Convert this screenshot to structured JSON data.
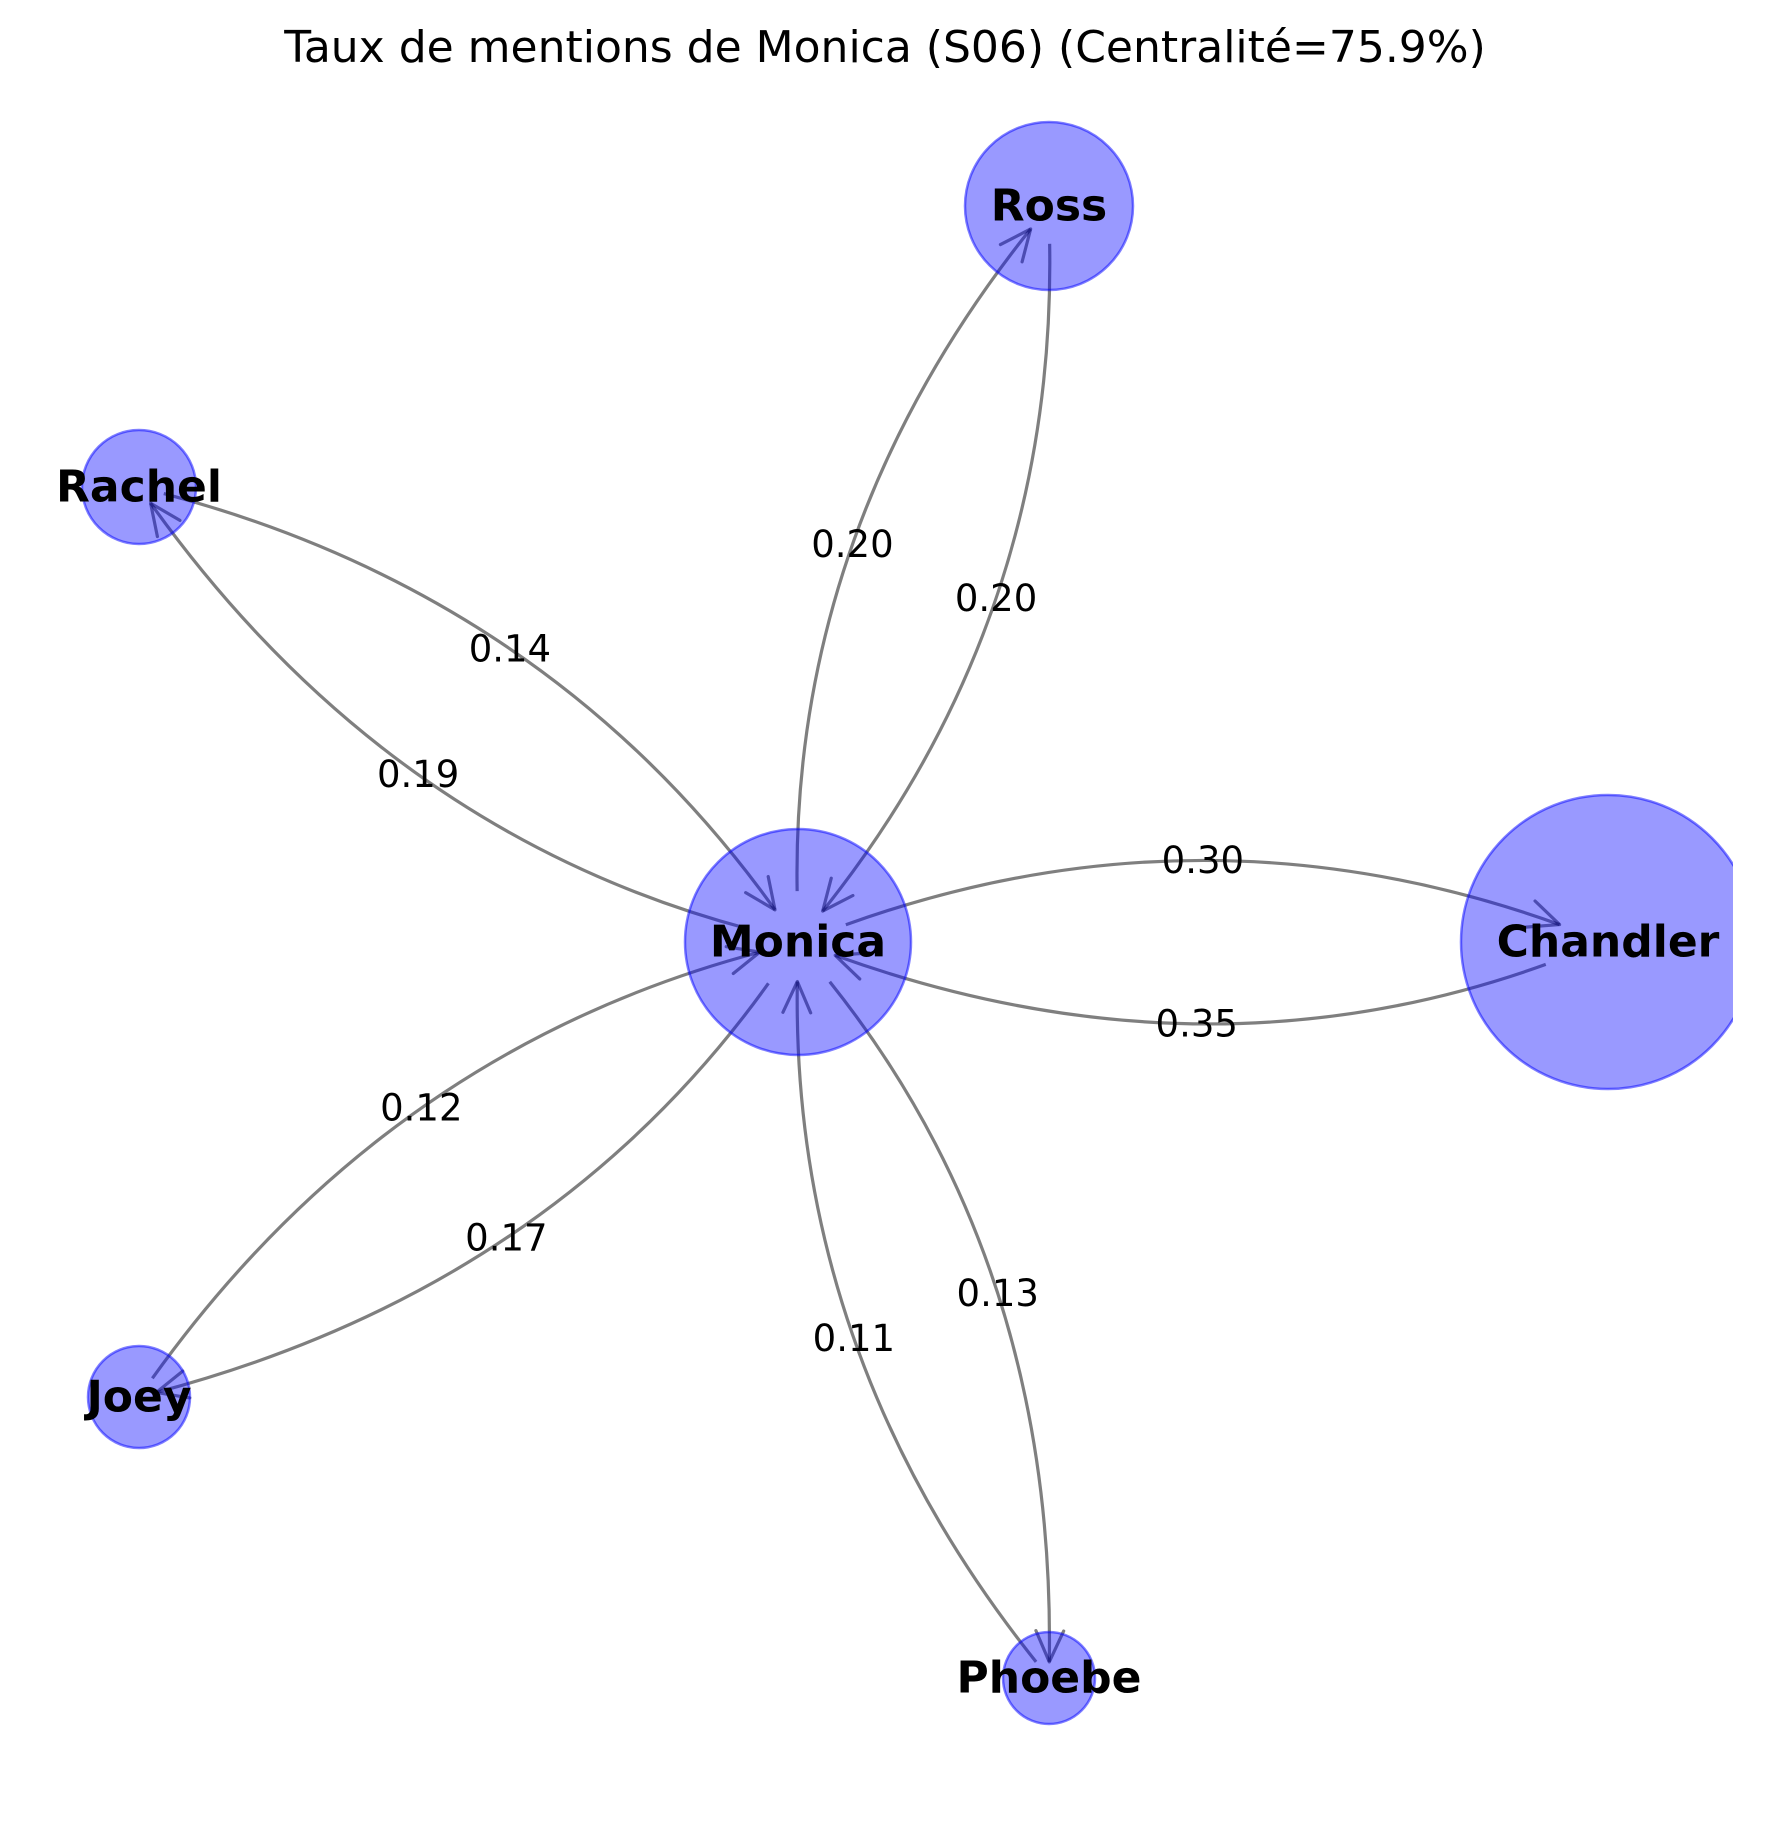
{
  "title": "Taux de mentions de Monica (S06) (Centralité=75.9%)",
  "colors": {
    "node_fill": "#0000ff",
    "edge": "#000000"
  },
  "nodes": [
    {
      "id": "Monica",
      "label": "Monica"
    },
    {
      "id": "Ross",
      "label": "Ross"
    },
    {
      "id": "Rachel",
      "label": "Rachel"
    },
    {
      "id": "Chandler",
      "label": "Chandler"
    },
    {
      "id": "Joey",
      "label": "Joey"
    },
    {
      "id": "Phoebe",
      "label": "Phoebe"
    }
  ],
  "edges": [
    {
      "source": "Monica",
      "target": "Ross",
      "label": "0.20"
    },
    {
      "source": "Ross",
      "target": "Monica",
      "label": "0.20"
    },
    {
      "source": "Monica",
      "target": "Rachel",
      "label": "0.19"
    },
    {
      "source": "Rachel",
      "target": "Monica",
      "label": "0.14"
    },
    {
      "source": "Monica",
      "target": "Chandler",
      "label": "0.30"
    },
    {
      "source": "Chandler",
      "target": "Monica",
      "label": "0.35"
    },
    {
      "source": "Monica",
      "target": "Joey",
      "label": "0.17"
    },
    {
      "source": "Joey",
      "target": "Monica",
      "label": "0.12"
    },
    {
      "source": "Monica",
      "target": "Phoebe",
      "label": "0.13"
    },
    {
      "source": "Phoebe",
      "target": "Monica",
      "label": "0.11"
    }
  ]
}
